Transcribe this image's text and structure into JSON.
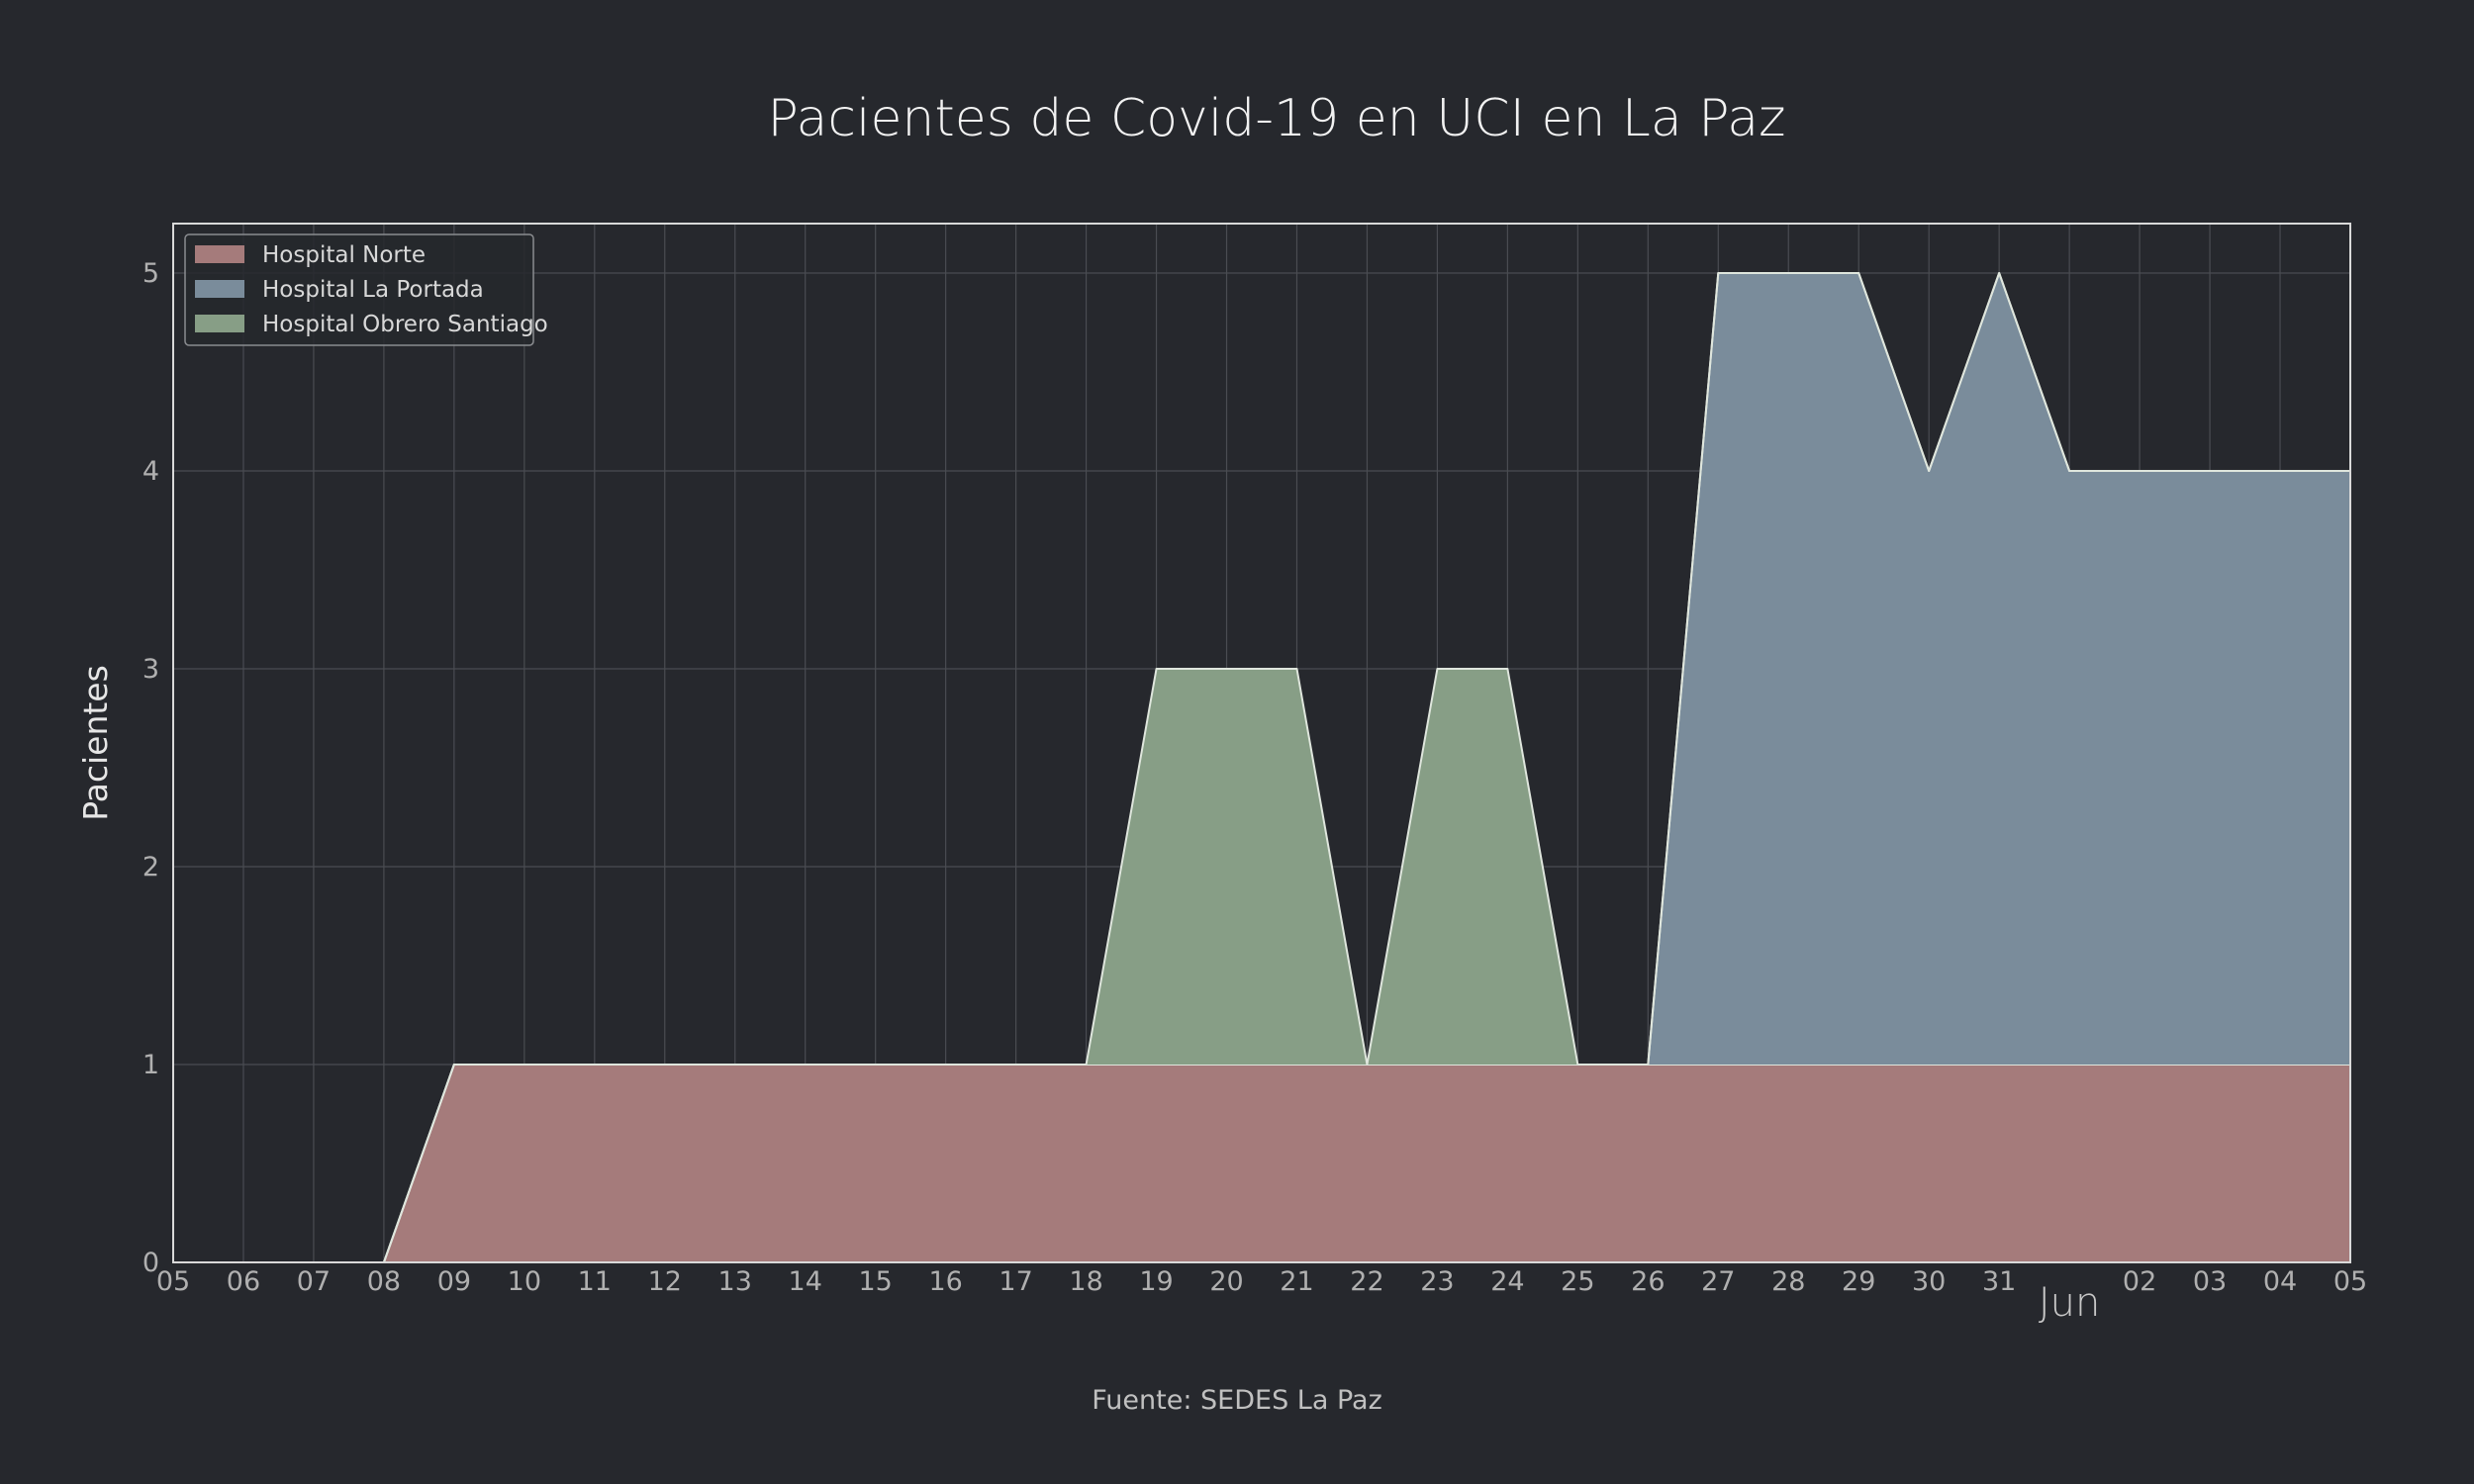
{
  "chart_data": {
    "type": "area",
    "stacked": true,
    "title": "Pacientes de Covid-19 en UCI en La Paz",
    "ylabel": "Pacientes",
    "xlabel": "",
    "source": "Fuente: SEDES La Paz",
    "x_tick_labels": [
      "05",
      "06",
      "07",
      "08",
      "09",
      "10",
      "11",
      "12",
      "13",
      "14",
      "15",
      "16",
      "17",
      "18",
      "19",
      "20",
      "21",
      "22",
      "23",
      "24",
      "25",
      "26",
      "27",
      "28",
      "29",
      "30",
      "31",
      "Jun",
      "02",
      "03",
      "04",
      "05"
    ],
    "month_label": "Jun",
    "ylim": [
      0,
      5.25
    ],
    "yticks": [
      0,
      1,
      2,
      3,
      4,
      5
    ],
    "grid": true,
    "legend_position": "top-left",
    "colors": {
      "background": "#26282d",
      "frame": "#d9d9d9",
      "grid": "#4a4c52",
      "outline": "#dfe6dd"
    },
    "series": [
      {
        "name": "Hospital Norte",
        "color": "#a57b7b",
        "values": [
          0,
          0,
          0,
          0,
          1,
          1,
          1,
          1,
          1,
          1,
          1,
          1,
          1,
          1,
          1,
          1,
          1,
          1,
          1,
          1,
          1,
          1,
          1,
          1,
          1,
          1,
          1,
          1,
          1,
          1,
          1,
          1
        ]
      },
      {
        "name": "Hospital La Portada",
        "color": "#7a8c9b",
        "values": [
          0,
          0,
          0,
          0,
          0,
          0,
          0,
          0,
          0,
          0,
          0,
          0,
          0,
          0,
          0,
          0,
          0,
          0,
          0,
          0,
          0,
          0,
          4,
          4,
          4,
          3,
          4,
          3,
          3,
          3,
          3,
          3
        ]
      },
      {
        "name": "Hospital Obrero Santiago",
        "color": "#879e86",
        "values": [
          0,
          0,
          0,
          0,
          0,
          0,
          0,
          0,
          0,
          0,
          0,
          0,
          0,
          0,
          2,
          2,
          2,
          0,
          2,
          2,
          0,
          0,
          0,
          0,
          0,
          0,
          0,
          0,
          0,
          0,
          0,
          0
        ]
      }
    ]
  }
}
